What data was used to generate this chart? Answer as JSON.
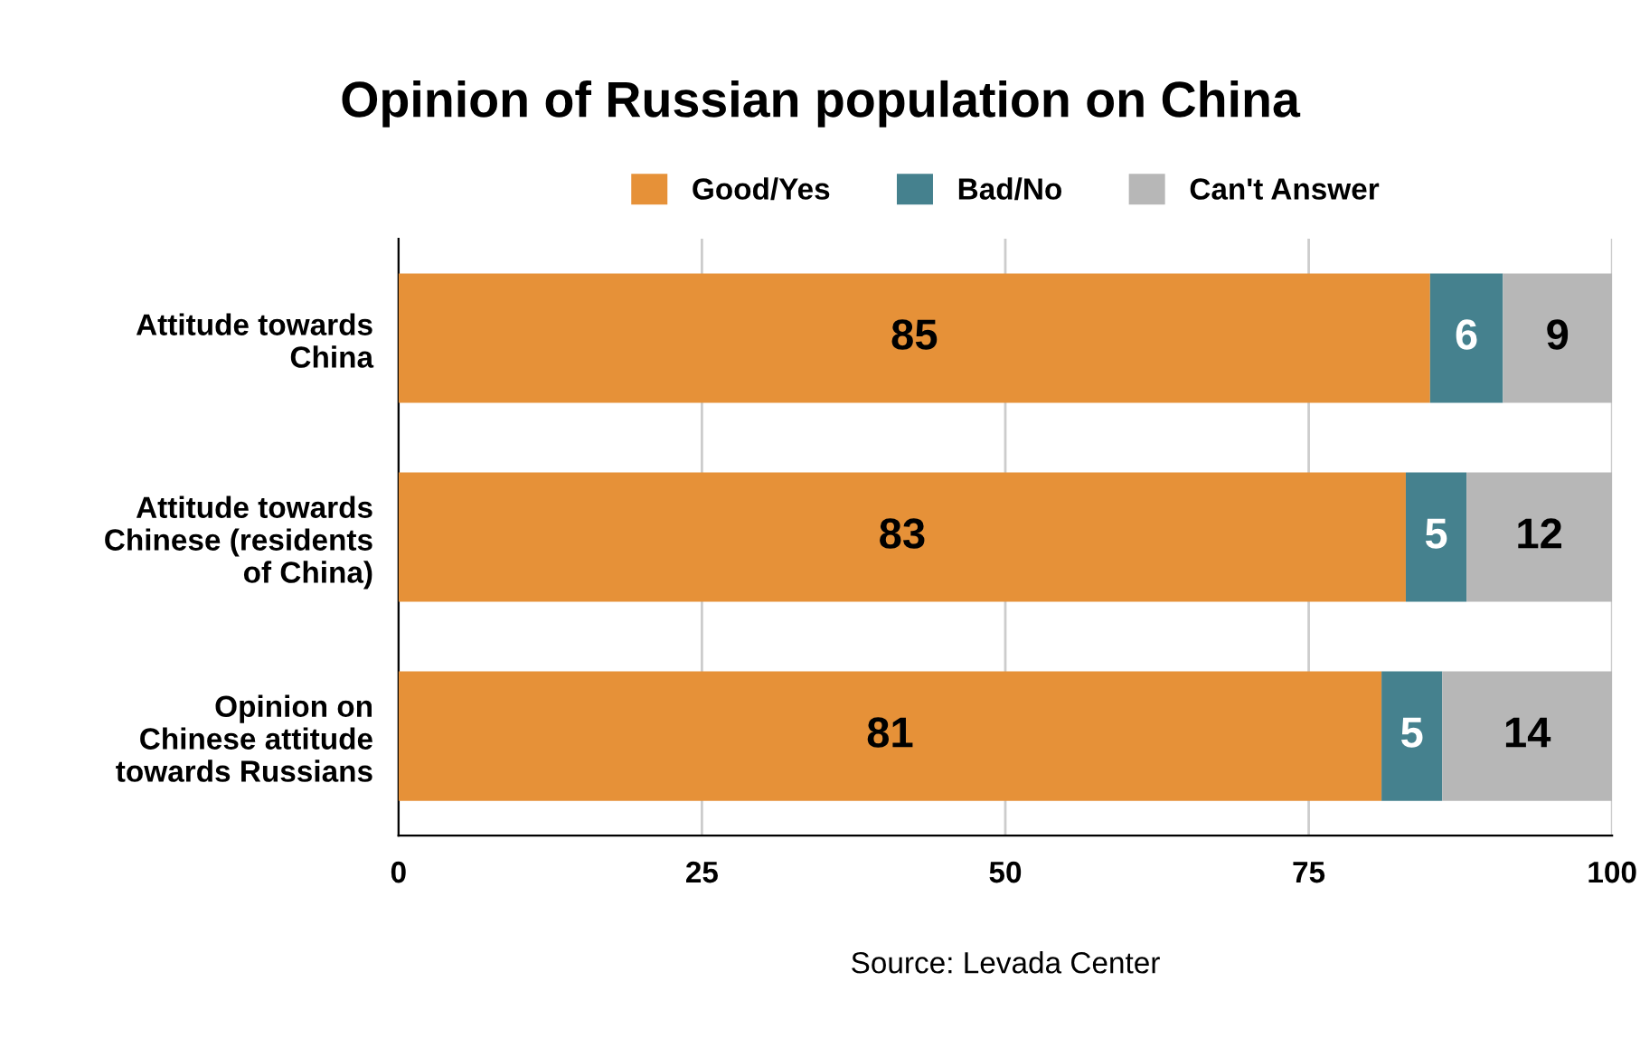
{
  "chart_data": {
    "type": "bar",
    "orientation": "horizontal",
    "stacked": true,
    "title": "Opinion of Russian population on China",
    "categories": [
      "Attitude towards\nChina",
      "Attitude towards\nChinese (residents\nof China)",
      "Opinion on\nChinese attitude\ntowards Russians"
    ],
    "series": [
      {
        "name": "Good/Yes",
        "color": "#e69138",
        "values": [
          85,
          83,
          81
        ]
      },
      {
        "name": "Bad/No",
        "color": "#45818e",
        "values": [
          6,
          5,
          5
        ]
      },
      {
        "name": "Can't Answer",
        "color": "#b7b7b7",
        "values": [
          9,
          12,
          14
        ]
      }
    ],
    "xlim": [
      0,
      100
    ],
    "xticks": [
      0,
      25,
      50,
      75,
      100
    ],
    "grid": "x",
    "legend": "top",
    "data_labels": true,
    "annotations": [
      "Source: Levada Center"
    ]
  }
}
